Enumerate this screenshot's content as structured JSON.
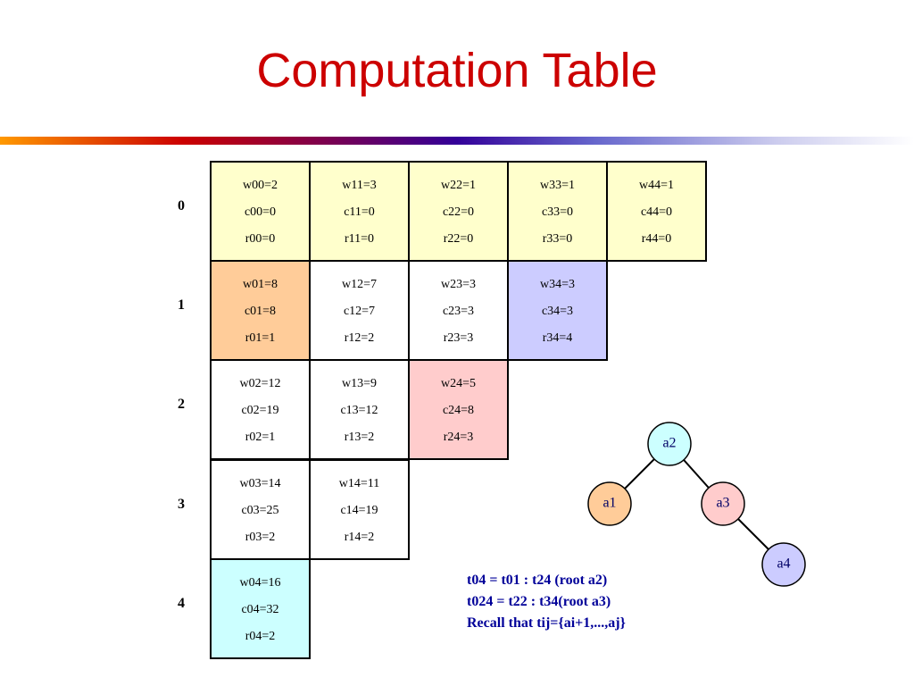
{
  "title": "Computation Table",
  "table": {
    "rows": [
      {
        "label": "0",
        "cells": [
          [
            "w00=2",
            "c00=0",
            "r00=0"
          ],
          [
            "w11=3",
            "c11=0",
            "r11=0"
          ],
          [
            "w22=1",
            "c22=0",
            "r22=0"
          ],
          [
            "w33=1",
            "c33=0",
            "r33=0"
          ],
          [
            "w44=1",
            "c44=0",
            "r44=0"
          ]
        ]
      },
      {
        "label": "1",
        "cells": [
          [
            "w01=8",
            "c01=8",
            "r01=1"
          ],
          [
            "w12=7",
            "c12=7",
            "r12=2"
          ],
          [
            "w23=3",
            "c23=3",
            "r23=3"
          ],
          [
            "w34=3",
            "c34=3",
            "r34=4"
          ]
        ]
      },
      {
        "label": "2",
        "cells": [
          [
            "w02=12",
            "c02=19",
            "r02=1"
          ],
          [
            "w13=9",
            "c13=12",
            "r13=2"
          ],
          [
            "w24=5",
            "c24=8",
            "r24=3"
          ]
        ]
      },
      {
        "label": "3",
        "cells": [
          [
            "w03=14",
            "c03=25",
            "r03=2"
          ],
          [
            "w14=11",
            "c14=19",
            "r14=2"
          ]
        ]
      },
      {
        "label": "4",
        "cells": [
          [
            "w04=16",
            "c04=32",
            "r04=2"
          ]
        ]
      }
    ]
  },
  "tree": {
    "nodes": [
      "a2",
      "a1",
      "a3",
      "a4"
    ]
  },
  "notes": [
    "t04 = t01 : t24  (root a2)",
    "t024 = t22 : t34(root a3)",
    "Recall that tij={ai+1,...,aj}"
  ]
}
